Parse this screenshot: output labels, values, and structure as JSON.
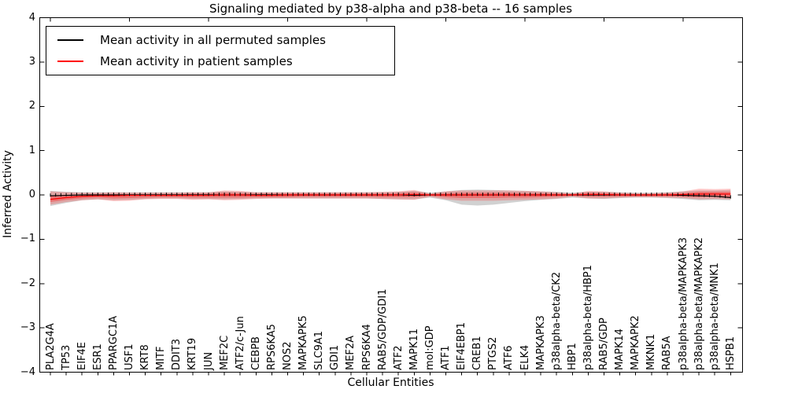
{
  "chart_data": {
    "type": "line",
    "title": "Signaling mediated by p38-alpha and p38-beta -- 16 samples",
    "xlabel": "Cellular Entities",
    "ylabel": "Inferred Activity",
    "ylim": [
      -4,
      4
    ],
    "ytick_labels": [
      "4",
      "3",
      "2",
      "1",
      "0",
      "−1",
      "−2",
      "−3",
      "−4"
    ],
    "ytick_values": [
      4,
      3,
      2,
      1,
      0,
      -1,
      -2,
      -3,
      -4
    ],
    "grid": false,
    "legend_position": "upper left",
    "legend": [
      {
        "label": "Mean activity in all permuted samples",
        "color": "#000000"
      },
      {
        "label": "Mean activity in patient samples",
        "color": "#ff0000"
      }
    ],
    "categories": [
      "PLA2G4A",
      "TP53",
      "EIF4E",
      "ESR1",
      "PPARGC1A",
      "USF1",
      "KRT8",
      "MITF",
      "DDIT3",
      "KRT19",
      "JUN",
      "MEF2C",
      "ATF2/c-Jun",
      "CEBPB",
      "RPS6KA5",
      "NOS2",
      "MAPKAPK5",
      "SLC9A1",
      "GDI1",
      "MEF2A",
      "RPS6KA4",
      "RAB5/GDP/GDI1",
      "ATF2",
      "MAPK11",
      "mol:GDP",
      "ATF1",
      "EIF4EBP1",
      "CREB1",
      "PTGS2",
      "ATF6",
      "ELK4",
      "MAPKAPK3",
      "p38alpha-beta/CK2",
      "HBP1",
      "p38alpha-beta/HBP1",
      "RAB5/GDP",
      "MAPK14",
      "MAPKAPK2",
      "MKNK1",
      "RAB5A",
      "p38alpha-beta/MAPKAPK3",
      "p38alpha-beta/MAPKAPK2",
      "p38alpha-beta/MNK1",
      "HSPB1"
    ],
    "series": [
      {
        "name": "Mean activity in all permuted samples",
        "color": "#000000",
        "values": [
          -0.02,
          -0.01,
          0,
          0,
          0,
          0,
          0,
          0,
          0,
          0,
          0,
          0,
          0,
          0,
          0,
          0,
          0,
          0,
          0,
          0,
          0,
          0,
          0,
          -0.01,
          0,
          0,
          0,
          0,
          0,
          0,
          0,
          0,
          0,
          0,
          0,
          0,
          0,
          0,
          0,
          0,
          -0.01,
          -0.02,
          -0.03,
          -0.06
        ]
      },
      {
        "name": "Mean activity in patient samples",
        "color": "#ff0000",
        "values": [
          -0.1,
          -0.06,
          -0.03,
          -0.02,
          -0.02,
          -0.01,
          -0.01,
          -0.01,
          -0.01,
          -0.01,
          -0.01,
          0.0,
          0.0,
          -0.01,
          -0.01,
          0.0,
          0.0,
          0.0,
          0.0,
          0.0,
          0.0,
          0.0,
          0.0,
          0.01,
          0.0,
          0.0,
          0.0,
          0.0,
          0.0,
          0.0,
          0.0,
          0.0,
          0.0,
          0.0,
          0.01,
          0.01,
          0.0,
          0.0,
          0.0,
          0.0,
          0.01,
          0.02,
          0.02,
          0.02
        ]
      }
    ],
    "bands": [
      {
        "name": "permuted-samples-range",
        "color": "#9a9a9a",
        "opacity": 0.45,
        "upper": [
          0.09,
          0.07,
          0.06,
          0.06,
          0.06,
          0.06,
          0.06,
          0.06,
          0.06,
          0.06,
          0.06,
          0.08,
          0.07,
          0.06,
          0.06,
          0.06,
          0.06,
          0.06,
          0.06,
          0.06,
          0.06,
          0.06,
          0.07,
          0.09,
          0.05,
          0.08,
          0.11,
          0.12,
          0.11,
          0.1,
          0.09,
          0.08,
          0.07,
          0.05,
          0.07,
          0.07,
          0.06,
          0.05,
          0.05,
          0.06,
          0.08,
          0.1,
          0.1,
          0.11
        ],
        "lower": [
          -0.25,
          -0.18,
          -0.12,
          -0.1,
          -0.12,
          -0.11,
          -0.09,
          -0.08,
          -0.08,
          -0.09,
          -0.09,
          -0.1,
          -0.09,
          -0.08,
          -0.08,
          -0.08,
          -0.08,
          -0.08,
          -0.08,
          -0.08,
          -0.08,
          -0.09,
          -0.1,
          -0.1,
          -0.06,
          -0.12,
          -0.22,
          -0.24,
          -0.22,
          -0.18,
          -0.14,
          -0.11,
          -0.09,
          -0.06,
          -0.08,
          -0.09,
          -0.07,
          -0.06,
          -0.06,
          -0.07,
          -0.09,
          -0.12,
          -0.11,
          -0.12
        ]
      },
      {
        "name": "patient-samples-outer-band",
        "color": "#ff3333",
        "opacity": 0.28,
        "upper": [
          0.08,
          0.06,
          0.05,
          0.05,
          0.06,
          0.05,
          0.05,
          0.05,
          0.05,
          0.06,
          0.06,
          0.1,
          0.09,
          0.06,
          0.06,
          0.06,
          0.06,
          0.06,
          0.06,
          0.06,
          0.06,
          0.07,
          0.08,
          0.11,
          0.03,
          0.08,
          0.1,
          0.1,
          0.1,
          0.1,
          0.09,
          0.08,
          0.06,
          0.03,
          0.09,
          0.08,
          0.05,
          0.04,
          0.04,
          0.05,
          0.08,
          0.14,
          0.13,
          0.14
        ],
        "lower": [
          -0.22,
          -0.16,
          -0.12,
          -0.1,
          -0.14,
          -0.13,
          -0.1,
          -0.09,
          -0.09,
          -0.11,
          -0.1,
          -0.12,
          -0.11,
          -0.09,
          -0.08,
          -0.08,
          -0.08,
          -0.08,
          -0.08,
          -0.08,
          -0.08,
          -0.09,
          -0.1,
          -0.11,
          -0.04,
          -0.1,
          -0.13,
          -0.13,
          -0.13,
          -0.12,
          -0.11,
          -0.1,
          -0.08,
          -0.04,
          -0.08,
          -0.08,
          -0.06,
          -0.05,
          -0.05,
          -0.06,
          -0.07,
          -0.1,
          -0.09,
          -0.1
        ]
      },
      {
        "name": "patient-samples-inner-band",
        "color": "#ff2222",
        "opacity": 0.38,
        "upper": [
          -0.02,
          0.0,
          0.01,
          0.02,
          0.02,
          0.02,
          0.02,
          0.02,
          0.02,
          0.03,
          0.03,
          0.05,
          0.04,
          0.03,
          0.03,
          0.03,
          0.03,
          0.03,
          0.03,
          0.03,
          0.03,
          0.03,
          0.04,
          0.06,
          0.02,
          0.04,
          0.05,
          0.05,
          0.05,
          0.05,
          0.04,
          0.04,
          0.03,
          0.02,
          0.05,
          0.04,
          0.03,
          0.02,
          0.02,
          0.03,
          0.04,
          0.07,
          0.07,
          0.07
        ],
        "lower": [
          -0.16,
          -0.11,
          -0.08,
          -0.06,
          -0.08,
          -0.07,
          -0.06,
          -0.05,
          -0.05,
          -0.06,
          -0.06,
          -0.06,
          -0.06,
          -0.05,
          -0.05,
          -0.05,
          -0.04,
          -0.04,
          -0.04,
          -0.04,
          -0.04,
          -0.05,
          -0.05,
          -0.05,
          -0.02,
          -0.05,
          -0.07,
          -0.07,
          -0.07,
          -0.06,
          -0.06,
          -0.05,
          -0.04,
          -0.02,
          -0.04,
          -0.04,
          -0.03,
          -0.03,
          -0.03,
          -0.03,
          -0.04,
          -0.05,
          -0.04,
          -0.05
        ]
      }
    ]
  }
}
